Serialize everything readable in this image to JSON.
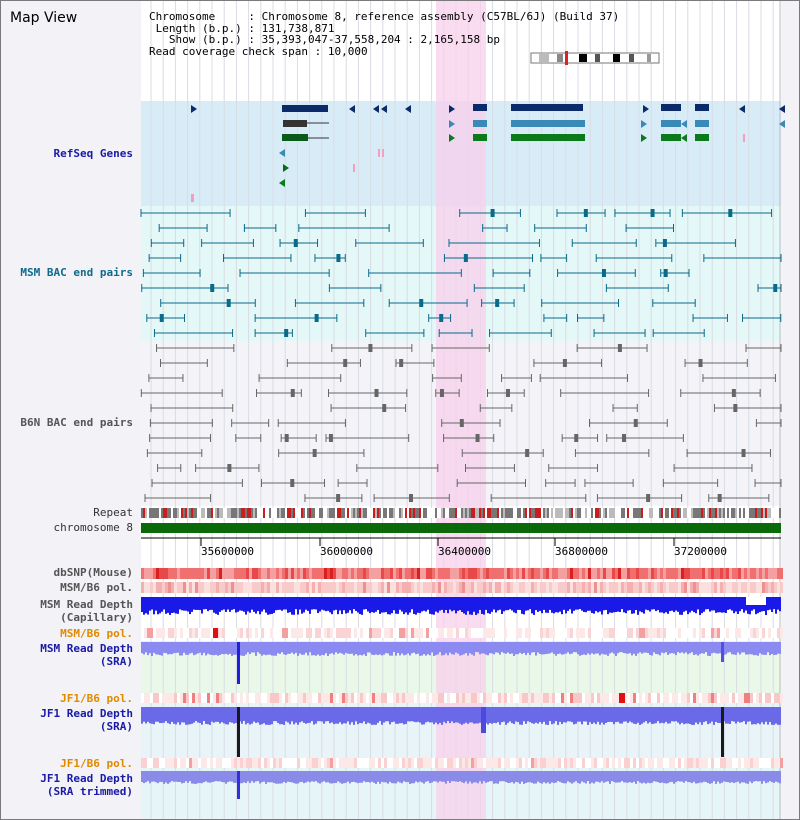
{
  "window": {
    "title": "Map View"
  },
  "header": {
    "chromosome_label": "Chromosome",
    "chromosome_value": "Chromosome 8, reference assembly (C57BL/6J) (Build 37)",
    "length_label": "Length (b.p.)",
    "length_value": "131,738,871",
    "show_label": "Show (b.p.)",
    "show_value": "35,393,047-37,558,204 : 2,165,158 bp",
    "coverage_label": "Read coverage check span",
    "coverage_value": "10,000"
  },
  "tracks": {
    "refseq": "RefSeq Genes",
    "msm_bac": "MSM BAC end pairs",
    "b6n_bac": "B6N BAC end pairs",
    "repeat": "Repeat",
    "chromosome": "chromosome 8",
    "dbsnp": "dbSNP(Mouse)",
    "msm_b6_pol_1": "MSM/B6 pol.",
    "msm_depth_cap_1": "MSM Read Depth",
    "msm_depth_cap_2": "(Capillary)",
    "msm_b6_pol_2": "MSM/B6 pol.",
    "msm_depth_sra_1": "MSM Read Depth",
    "msm_depth_sra_2": "(SRA)",
    "jf1_b6_pol_1": "JF1/B6 pol.",
    "jf1_depth_sra_1": "JF1 Read Depth",
    "jf1_depth_sra_2": "(SRA)",
    "jf1_b6_pol_2": "JF1/B6 pol.",
    "jf1_depth_trim_1": "JF1 Read Depth",
    "jf1_depth_trim_2": "(SRA trimmed)"
  },
  "axis": {
    "ticks": [
      "35600000",
      "36000000",
      "36400000",
      "36800000",
      "37200000"
    ]
  },
  "colors": {
    "highlight": "#f8d0ec",
    "refseq_bg": "#d8ecf8",
    "msm_bg": "#e4f8f8",
    "gene_navy": "#0a2a6a",
    "gene_teal": "#3a8ab8",
    "gene_green": "#0a7a1a",
    "chromosome": "#0a6a0a",
    "depth_blue": "#2222ee",
    "depth_light": "#7a7aee"
  }
}
